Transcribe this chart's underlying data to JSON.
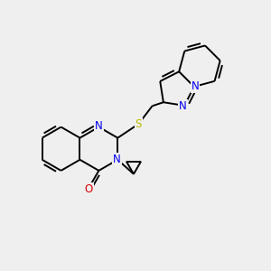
{
  "background_color": "#efefef",
  "bond_color": "#000000",
  "N_color": "#0000ee",
  "O_color": "#dd0000",
  "S_color": "#bbbb00",
  "line_width": 1.4,
  "font_size": 8.5,
  "xlim": [
    0,
    10
  ],
  "ylim": [
    0,
    10
  ]
}
